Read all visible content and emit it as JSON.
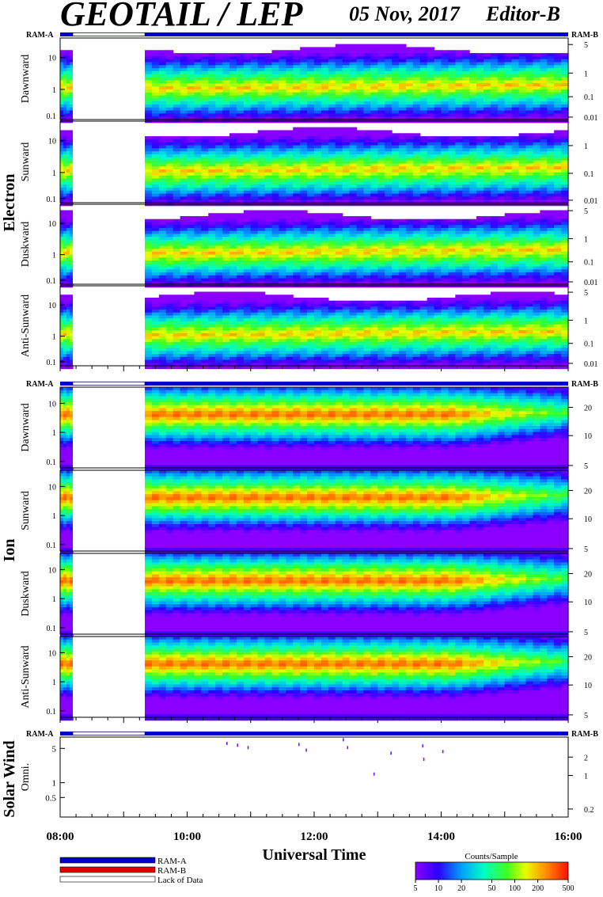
{
  "header": {
    "title": "GEOTAIL / LEP",
    "date": "05 Nov, 2017",
    "editor": "Editor-B"
  },
  "labels": {
    "ram_a": "RAM-A",
    "ram_b": "RAM-B",
    "electron": "Electron",
    "ion": "Ion",
    "solar_wind": "Solar Wind",
    "x_axis_title": "Universal Time",
    "legend_ram_a": "RAM-A",
    "legend_ram_b": "RAM-B",
    "legend_lack": "Lack of Data",
    "colorbar_title": "Counts/Sample"
  },
  "colors": {
    "ram_a": "#0000cc",
    "ram_b": "#dd0000",
    "lack_of_data": "#ffffff"
  },
  "chart_data": {
    "type": "heatmap",
    "x_ticks": [
      "08:00",
      "10:00",
      "12:00",
      "14:00",
      "16:00"
    ],
    "x_range": [
      "08:00",
      "16:00"
    ],
    "ram_bar": {
      "ram_a_until": "08:12",
      "lack_until": "09:20",
      "ram_a_after": true
    },
    "data_gap": [
      "08:12",
      "09:20"
    ],
    "colorbar": {
      "ticks": [
        "5",
        "10",
        "20",
        "50",
        "100",
        "200",
        "500"
      ],
      "scale": "log"
    },
    "electron": {
      "left_ticks": [
        "10",
        "1",
        "0.1"
      ],
      "panels": [
        {
          "name": "Dawnward",
          "right_ticks": [
            "5",
            "1",
            "0.1",
            "0.01"
          ]
        },
        {
          "name": "Sunward",
          "right_ticks": [
            "1",
            "0.1",
            "0.01"
          ]
        },
        {
          "name": "Duskward",
          "right_ticks": [
            "5",
            "1",
            "0.1",
            "0.01"
          ]
        },
        {
          "name": "Anti-Sunward",
          "right_ticks": [
            "5",
            "1",
            "0.1",
            "0.01"
          ]
        }
      ]
    },
    "ion": {
      "left_ticks": [
        "10",
        "1",
        "0.1"
      ],
      "panels": [
        {
          "name": "Dawnward",
          "right_ticks": [
            "20",
            "10",
            "5"
          ]
        },
        {
          "name": "Sunward",
          "right_ticks": [
            "20",
            "10",
            "5"
          ]
        },
        {
          "name": "Duskward",
          "right_ticks": [
            "20",
            "10",
            "5"
          ]
        },
        {
          "name": "Anti-Sunward",
          "right_ticks": [
            "20",
            "10",
            "5"
          ]
        }
      ]
    },
    "solar_wind": {
      "name": "Omni.",
      "left_ticks": [
        "5",
        "1",
        "0.5"
      ],
      "right_ticks": [
        "2",
        "1",
        "0.2"
      ],
      "points": [
        {
          "t": "10:37",
          "v": 6.3
        },
        {
          "t": "10:47",
          "v": 5.8
        },
        {
          "t": "10:57",
          "v": 5.2
        },
        {
          "t": "11:45",
          "v": 6.0
        },
        {
          "t": "11:52",
          "v": 4.6
        },
        {
          "t": "12:27",
          "v": 7.5
        },
        {
          "t": "12:31",
          "v": 5.2
        },
        {
          "t": "12:56",
          "v": 1.5
        },
        {
          "t": "13:12",
          "v": 4.0
        },
        {
          "t": "13:42",
          "v": 5.6
        },
        {
          "t": "13:43",
          "v": 3.0
        },
        {
          "t": "14:01",
          "v": 4.3
        }
      ]
    }
  }
}
